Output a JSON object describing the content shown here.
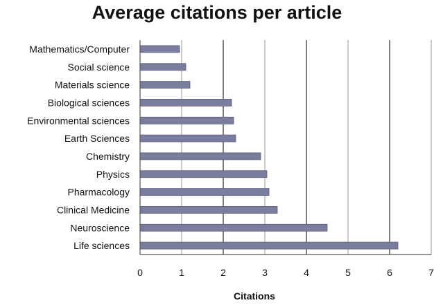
{
  "chart_data": {
    "type": "bar",
    "orientation": "horizontal",
    "title": "Average citations per article",
    "xlabel": "Citations",
    "ylabel": "",
    "categories": [
      "Mathematics/Computer",
      "Social science",
      "Materials science",
      "Biological sciences",
      "Environmental sciences",
      "Earth Sciences",
      "Chemistry",
      "Physics",
      "Pharmacology",
      "Clinical Medicine",
      "Neuroscience",
      "Life sciences"
    ],
    "values": [
      0.95,
      1.1,
      1.2,
      2.2,
      2.25,
      2.3,
      2.9,
      3.05,
      3.1,
      3.3,
      4.5,
      6.2
    ],
    "xlim": [
      0,
      7
    ],
    "xticks": [
      "0",
      "1",
      "2",
      "3",
      "4",
      "5",
      "6",
      "7"
    ],
    "grid": "vertical",
    "legend": "none",
    "colors": {
      "bar_fill": "#7b7d9f",
      "bar_stroke": "#5b5d7c",
      "major_grid": "#2a2a2a",
      "minor_grid": "#a8a8a8",
      "axis": "#555555"
    }
  }
}
